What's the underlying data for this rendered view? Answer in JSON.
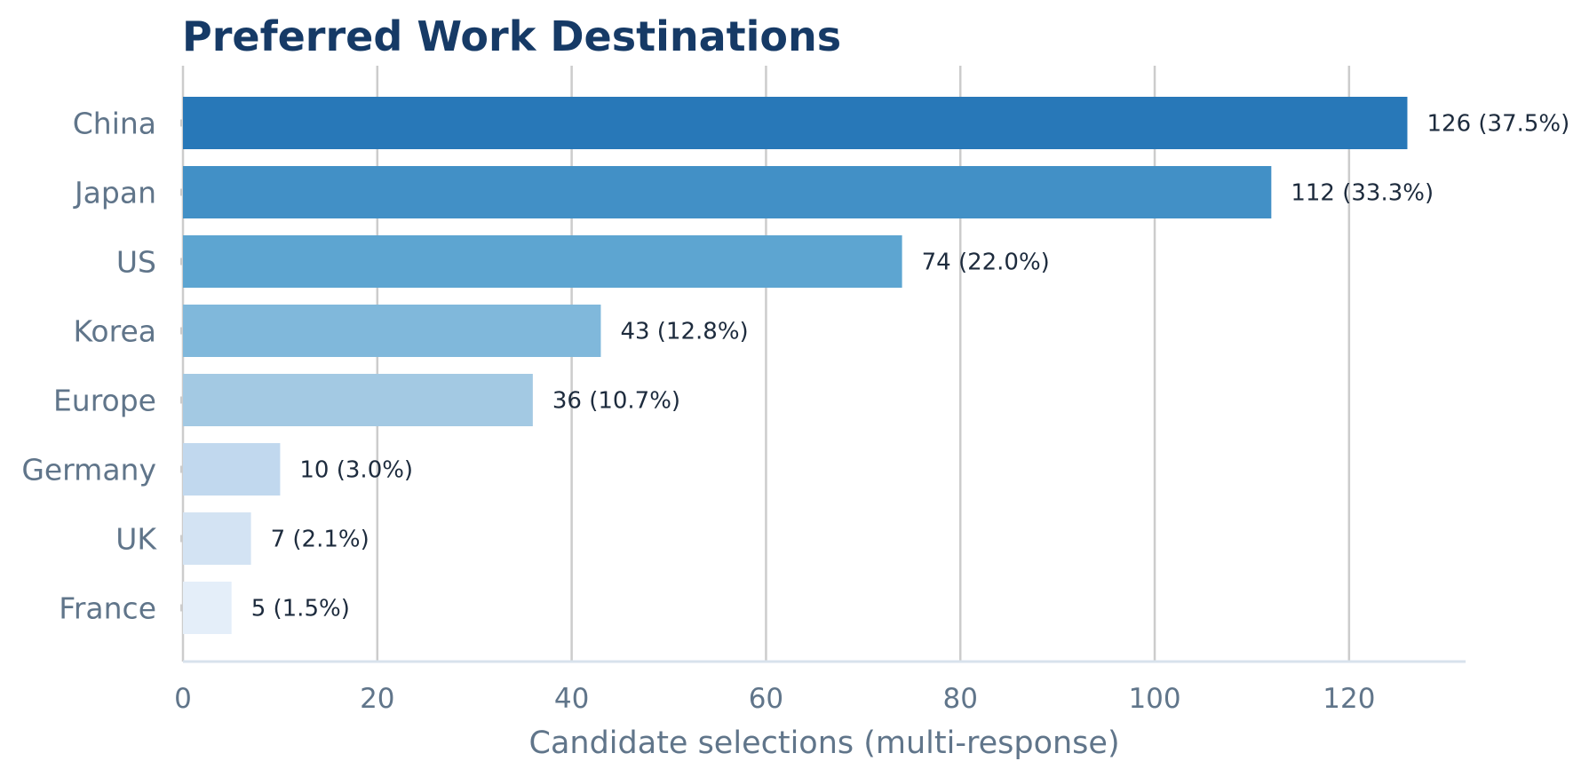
{
  "chart_data": {
    "type": "bar",
    "orientation": "horizontal",
    "title": "Preferred Work Destinations",
    "xlabel": "Candidate selections (multi-response)",
    "ylabel": "",
    "categories": [
      "China",
      "Japan",
      "US",
      "Korea",
      "Europe",
      "Germany",
      "UK",
      "France"
    ],
    "values": [
      126,
      112,
      74,
      43,
      36,
      10,
      7,
      5
    ],
    "value_labels": [
      "126 (37.5%)",
      "112 (33.3%)",
      "74 (22.0%)",
      "43 (12.8%)",
      "36 (10.7%)",
      "10 (3.0%)",
      "7 (2.1%)",
      "5 (1.5%)"
    ],
    "colors": [
      "#2878b8",
      "#4290c6",
      "#5da5d1",
      "#80b8db",
      "#a3c9e3",
      "#c1d8ee",
      "#d3e3f3",
      "#e4eef9"
    ],
    "xlim": [
      0,
      132
    ],
    "xticks": [
      0,
      20,
      40,
      60,
      80,
      100,
      120
    ],
    "grid": "vertical",
    "legend": "none"
  }
}
